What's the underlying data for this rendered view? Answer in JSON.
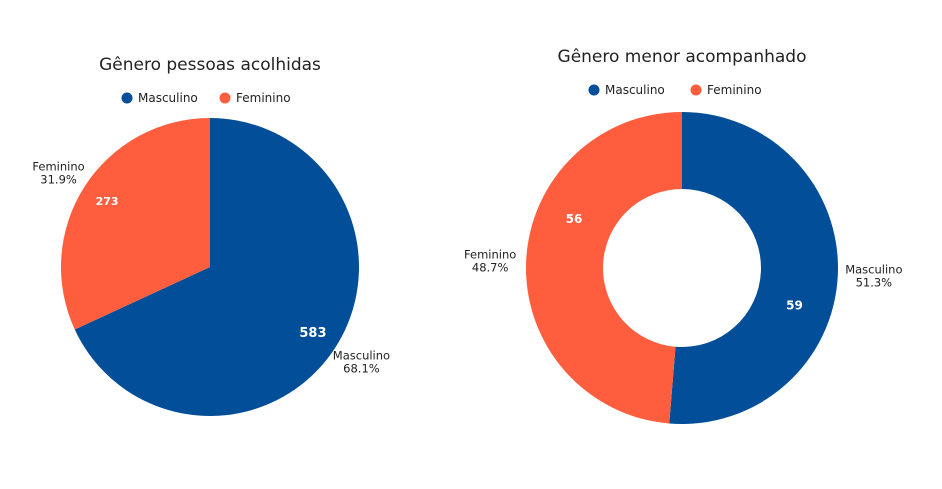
{
  "colors": {
    "masculino": "#024e98",
    "feminino": "#fe5e3e"
  },
  "chart_data": [
    {
      "type": "pie",
      "title": "Gênero pessoas acolhidas",
      "legend": [
        "Masculino",
        "Feminino"
      ],
      "legend_position": "top-center",
      "slices": [
        {
          "label": "Masculino",
          "value": 583,
          "value_text": "583",
          "percent_text": "68.1%"
        },
        {
          "label": "Feminino",
          "value": 273,
          "value_text": "273",
          "percent_text": "31.9%"
        }
      ]
    },
    {
      "type": "pie",
      "variant": "donut",
      "title": "Gênero menor acompanhado",
      "legend": [
        "Masculino",
        "Feminino"
      ],
      "legend_position": "top-center",
      "slices": [
        {
          "label": "Masculino",
          "value": 59,
          "value_text": "59",
          "percent_text": "51.3%"
        },
        {
          "label": "Feminino",
          "value": 56,
          "value_text": "56",
          "percent_text": "48.7%"
        }
      ]
    }
  ]
}
